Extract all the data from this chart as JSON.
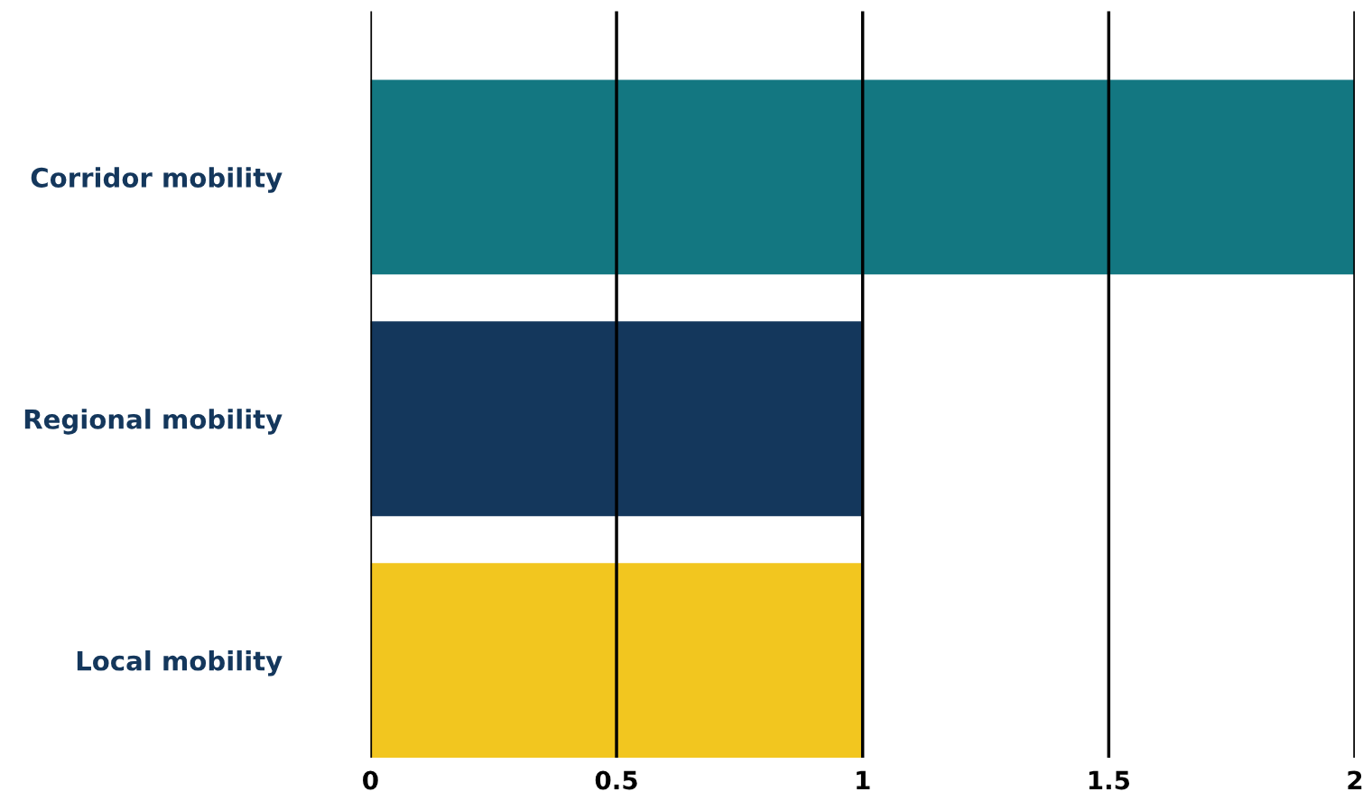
{
  "chart_data": {
    "type": "bar",
    "orientation": "horizontal",
    "categories": [
      "Corridor mobility",
      "Regional mobility",
      "Local mobility"
    ],
    "values": [
      2,
      1,
      1
    ],
    "colors": [
      "#137781",
      "#14375c",
      "#f2c61f"
    ],
    "xlim": [
      0,
      2
    ],
    "xticks": [
      0,
      0.5,
      1,
      1.5,
      2
    ],
    "grid": "x"
  }
}
